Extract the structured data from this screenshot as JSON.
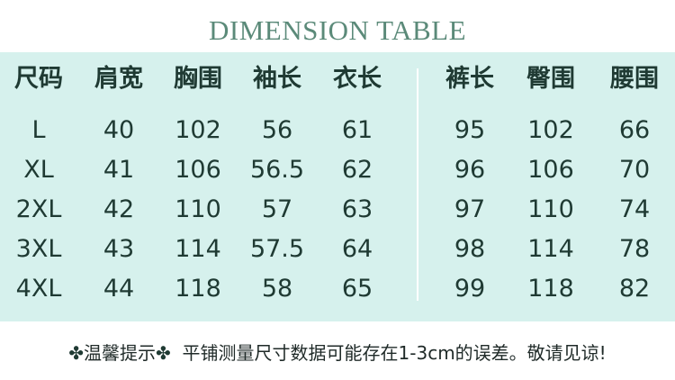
{
  "title": "DIMENSION TABLE",
  "headers": [
    "尺码",
    "肩宽",
    "胸围",
    "袖长",
    "衣长",
    "裤长",
    "臀围",
    "腰围"
  ],
  "rows": [
    [
      "L",
      "40",
      "102",
      "56",
      "61",
      "95",
      "102",
      "66"
    ],
    [
      "XL",
      "41",
      "106",
      "56.5",
      "62",
      "96",
      "106",
      "70"
    ],
    [
      "2XL",
      "42",
      "110",
      "57",
      "63",
      "97",
      "110",
      "74"
    ],
    [
      "3XL",
      "43",
      "114",
      "57.5",
      "64",
      "98",
      "114",
      "78"
    ],
    [
      "4XL",
      "44",
      "118",
      "58",
      "65",
      "99",
      "118",
      "82"
    ]
  ],
  "note": {
    "icon": "clover-flower-icon",
    "label": "温馨提示",
    "text": "平铺测量尺寸数据可能存在1-3cm的误差。敬请见谅!"
  },
  "colors": {
    "band": "#d6f1ed",
    "title": "#5b8a79",
    "text": "#1f3a33"
  }
}
